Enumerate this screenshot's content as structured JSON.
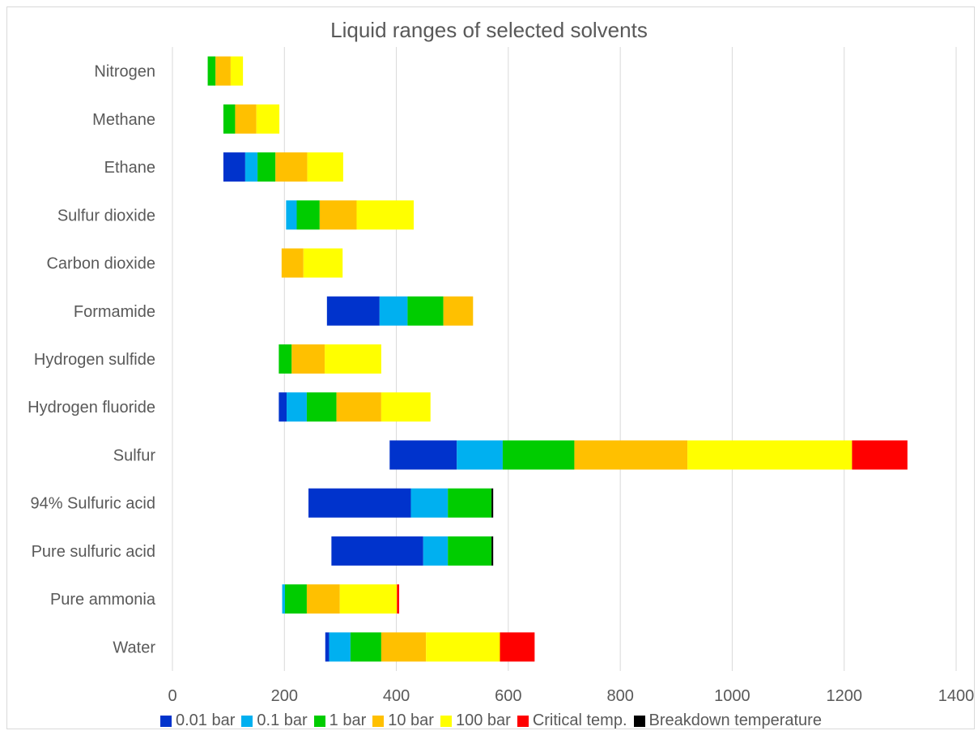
{
  "chart_data": {
    "type": "bar",
    "orientation": "horizontal",
    "stacked": true,
    "title": "Liquid ranges of selected solvents",
    "xlabel": "",
    "ylabel": "",
    "xlim": [
      0,
      1400
    ],
    "x_ticks": [
      "0",
      "200",
      "400",
      "600",
      "800",
      "1000",
      "1200",
      "1400"
    ],
    "grid": "vertical",
    "legend_position": "bottom",
    "categories": [
      "Nitrogen",
      "Methane",
      "Ethane",
      "Sulfur dioxide",
      "Carbon dioxide",
      "Formamide",
      "Hydrogen sulfide",
      "Hydrogen fluoride",
      "Sulfur",
      "94% Sulfuric acid",
      "Pure sulfuric acid",
      "Pure ammonia",
      "Water"
    ],
    "series": [
      {
        "name": "0.01 bar",
        "color": "#0033cc"
      },
      {
        "name": "0.1 bar",
        "color": "#00b0f0"
      },
      {
        "name": "1 bar",
        "color": "#00cc00"
      },
      {
        "name": "10 bar",
        "color": "#ffc000"
      },
      {
        "name": "100 bar",
        "color": "#ffff00"
      },
      {
        "name": "Critical temp.",
        "color": "#ff0000"
      },
      {
        "name": "Breakdown temperature",
        "color": "#000000"
      }
    ],
    "segments": {
      "Nitrogen": [
        [
          63,
          77,
          2
        ],
        [
          77,
          104,
          3
        ],
        [
          104,
          126,
          4
        ]
      ],
      "Methane": [
        [
          91,
          112,
          2
        ],
        [
          112,
          150,
          3
        ],
        [
          150,
          191,
          4
        ]
      ],
      "Ethane": [
        [
          91,
          130,
          0
        ],
        [
          130,
          152,
          1
        ],
        [
          152,
          184,
          2
        ],
        [
          184,
          241,
          3
        ],
        [
          241,
          305,
          4
        ]
      ],
      "Sulfur dioxide": [
        [
          203,
          222,
          1
        ],
        [
          222,
          263,
          2
        ],
        [
          263,
          329,
          3
        ],
        [
          329,
          431,
          4
        ]
      ],
      "Carbon dioxide": [
        [
          195,
          234,
          3
        ],
        [
          234,
          304,
          4
        ]
      ],
      "Formamide": [
        [
          276,
          370,
          0
        ],
        [
          370,
          420,
          1
        ],
        [
          420,
          484,
          2
        ],
        [
          484,
          537,
          3
        ]
      ],
      "Hydrogen sulfide": [
        [
          190,
          213,
          2
        ],
        [
          213,
          272,
          3
        ],
        [
          272,
          373,
          4
        ]
      ],
      "Hydrogen fluoride": [
        [
          190,
          204,
          0
        ],
        [
          204,
          240,
          1
        ],
        [
          240,
          293,
          2
        ],
        [
          293,
          373,
          3
        ],
        [
          373,
          461,
          4
        ]
      ],
      "Sulfur": [
        [
          388,
          508,
          0
        ],
        [
          508,
          590,
          1
        ],
        [
          590,
          718,
          2
        ],
        [
          718,
          920,
          3
        ],
        [
          920,
          1214,
          4
        ],
        [
          1214,
          1313,
          5
        ]
      ],
      "94% Sulfuric acid": [
        [
          243,
          426,
          0
        ],
        [
          426,
          492,
          1
        ],
        [
          492,
          570,
          2
        ],
        [
          570,
          573,
          6
        ]
      ],
      "Pure sulfuric acid": [
        [
          284,
          448,
          0
        ],
        [
          448,
          492,
          1
        ],
        [
          492,
          570,
          2
        ],
        [
          570,
          573,
          6
        ]
      ],
      "Pure ammonia": [
        [
          196,
          201,
          1
        ],
        [
          201,
          240,
          2
        ],
        [
          240,
          299,
          3
        ],
        [
          299,
          401,
          4
        ],
        [
          401,
          405,
          5
        ]
      ],
      "Water": [
        [
          273,
          280,
          0
        ],
        [
          280,
          318,
          1
        ],
        [
          318,
          373,
          2
        ],
        [
          373,
          453,
          3
        ],
        [
          453,
          585,
          4
        ],
        [
          585,
          647,
          5
        ]
      ]
    }
  }
}
